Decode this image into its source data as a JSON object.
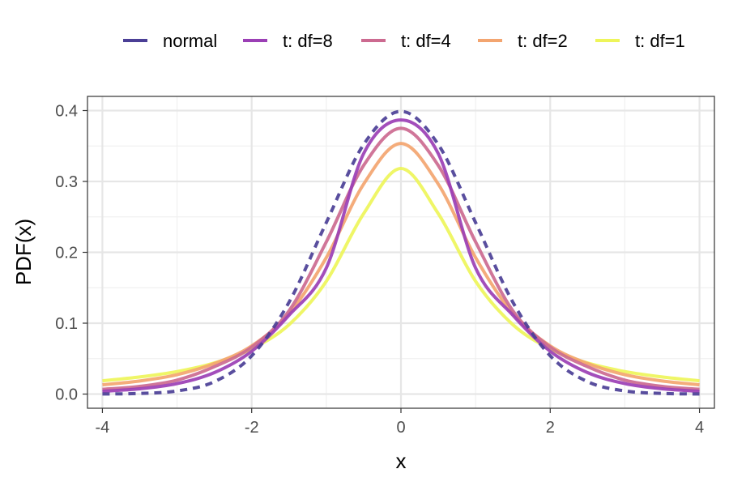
{
  "chart_data": {
    "type": "line",
    "title": "",
    "xlabel": "x",
    "ylabel": "PDF(x)",
    "xlim": [
      -4.2,
      4.2
    ],
    "ylim": [
      -0.02,
      0.42
    ],
    "x_ticks": [
      -4,
      -2,
      0,
      2,
      4
    ],
    "x_tick_labels": [
      "-4",
      "-2",
      "0",
      "2",
      "4"
    ],
    "y_ticks": [
      0.0,
      0.1,
      0.2,
      0.3,
      0.4
    ],
    "y_tick_labels": [
      "0.0",
      "0.1",
      "0.2",
      "0.3",
      "0.4"
    ],
    "grid": true,
    "legend_position": "top",
    "x": [
      -4,
      -3.5,
      -3,
      -2.5,
      -2,
      -1.5,
      -1,
      -0.5,
      0,
      0.5,
      1,
      1.5,
      2,
      2.5,
      3,
      3.5,
      4
    ],
    "series": [
      {
        "name": "normal",
        "color": "#4b3f96",
        "dashed": true,
        "values": [
          0.0001,
          0.0009,
          0.0044,
          0.0175,
          0.054,
          0.1295,
          0.242,
          0.3521,
          0.3989,
          0.3521,
          0.242,
          0.1295,
          0.054,
          0.0175,
          0.0044,
          0.0009,
          0.0001
        ]
      },
      {
        "name": "t: df=8",
        "color": "#9b3fb5",
        "dashed": false,
        "values": [
          0.0039,
          0.0074,
          0.0148,
          0.0303,
          0.0604,
          0.1112,
          0.1779,
          0.3393,
          0.3867,
          0.3393,
          0.1779,
          0.1112,
          0.0604,
          0.0303,
          0.0148,
          0.0074,
          0.0039
        ]
      },
      {
        "name": "t: df=4",
        "color": "#cc6a90",
        "dashed": false,
        "values": [
          0.0067,
          0.0109,
          0.0197,
          0.0386,
          0.0663,
          0.1174,
          0.2147,
          0.3226,
          0.375,
          0.3226,
          0.2147,
          0.1174,
          0.0663,
          0.0386,
          0.0197,
          0.0109,
          0.0067
        ]
      },
      {
        "name": "t: df=2",
        "color": "#f3a570",
        "dashed": false,
        "values": [
          0.0131,
          0.0184,
          0.0273,
          0.0431,
          0.068,
          0.1134,
          0.1925,
          0.2962,
          0.3536,
          0.2962,
          0.1925,
          0.1134,
          0.068,
          0.0431,
          0.0273,
          0.0184,
          0.0131
        ]
      },
      {
        "name": "t: df=1",
        "color": "#eef55a",
        "dashed": false,
        "values": [
          0.0187,
          0.0241,
          0.0318,
          0.0439,
          0.0637,
          0.0979,
          0.1592,
          0.2546,
          0.3183,
          0.2546,
          0.1592,
          0.0979,
          0.0637,
          0.0439,
          0.0318,
          0.0241,
          0.0187
        ]
      }
    ]
  }
}
